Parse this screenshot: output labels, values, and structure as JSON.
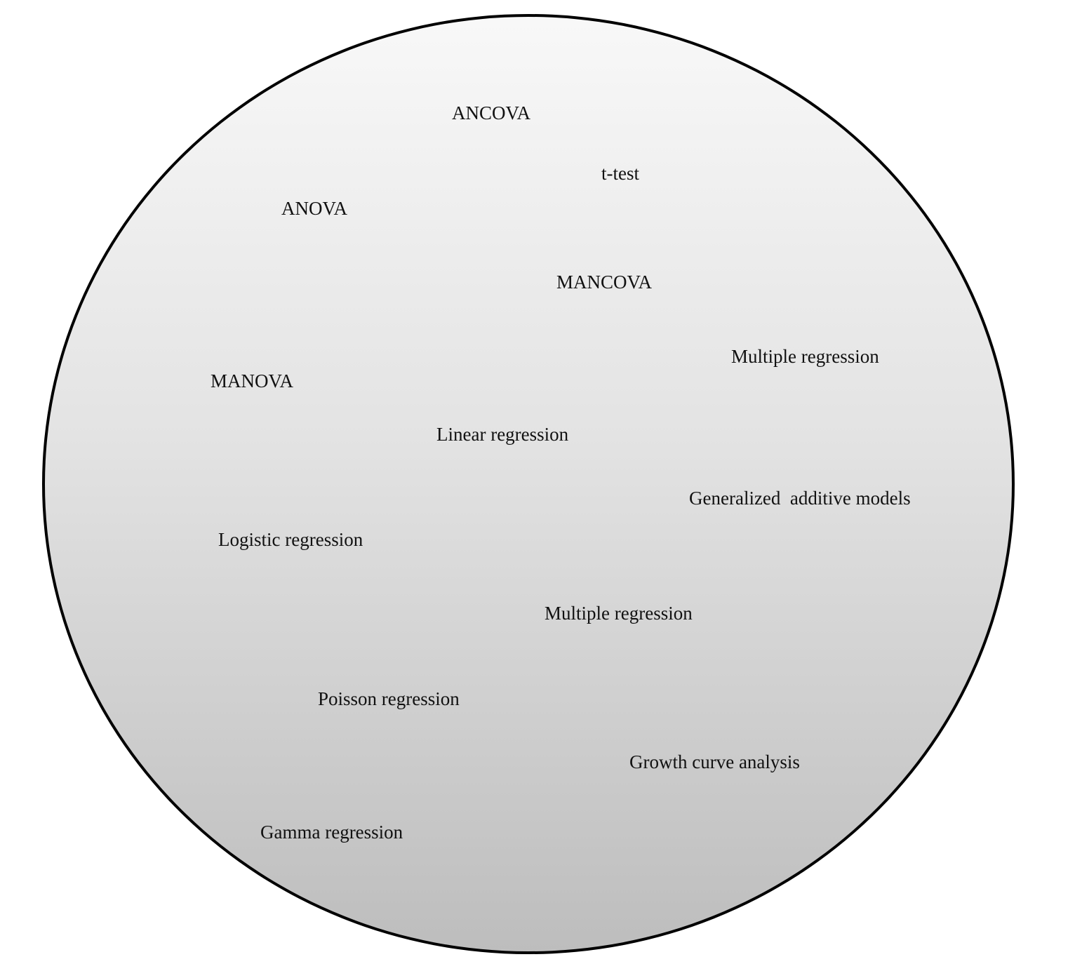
{
  "diagram": {
    "labels": {
      "ancova": "ANCOVA",
      "ttest": "t-test",
      "anova": "ANOVA",
      "mancova": "MANCOVA",
      "multiple_regression_1": "Multiple regression",
      "manova": "MANOVA",
      "linear_regression": "Linear regression",
      "gam": "Generalized  additive models",
      "logistic_regression": "Logistic regression",
      "multiple_regression_2": "Multiple regression",
      "poisson_regression": "Poisson regression",
      "growth_curve": "Growth curve analysis",
      "gamma_regression": "Gamma regression"
    }
  }
}
